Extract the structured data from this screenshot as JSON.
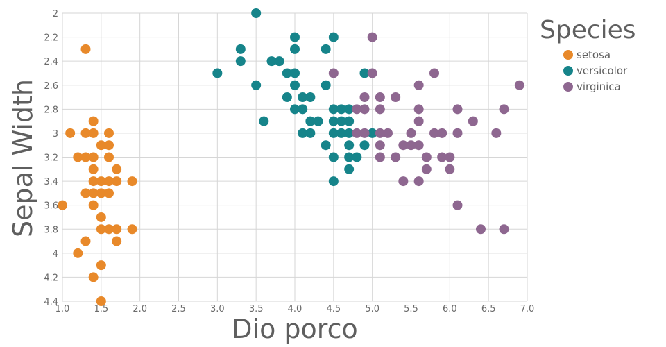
{
  "chart_data": {
    "type": "scatter",
    "xlabel": "Dio porco",
    "ylabel": "Sepal Width",
    "xlim": [
      1.0,
      7.0
    ],
    "ylim": [
      2.0,
      4.4
    ],
    "y_reversed": true,
    "x_ticks": [
      "1.0",
      "1.5",
      "2.0",
      "2.5",
      "3.0",
      "3.5",
      "4.0",
      "4.5",
      "5.0",
      "5.5",
      "6.0",
      "6.5",
      "7.0"
    ],
    "y_ticks": [
      "2",
      "2.2",
      "2.4",
      "2.6",
      "2.8",
      "3",
      "3.2",
      "3.4",
      "3.6",
      "3.8",
      "4",
      "4.2",
      "4.4"
    ],
    "grid": true,
    "legend": {
      "title": "Species",
      "placement": "right"
    },
    "series": [
      {
        "name": "setosa",
        "color": "#E8892A",
        "points": [
          [
            1.3,
            2.3
          ],
          [
            1.1,
            3.0
          ],
          [
            1.3,
            3.0
          ],
          [
            1.4,
            3.0
          ],
          [
            1.6,
            3.0
          ],
          [
            1.4,
            2.9
          ],
          [
            1.2,
            3.2
          ],
          [
            1.3,
            3.2
          ],
          [
            1.4,
            3.2
          ],
          [
            1.6,
            3.2
          ],
          [
            1.5,
            3.1
          ],
          [
            1.6,
            3.1
          ],
          [
            1.4,
            3.3
          ],
          [
            1.7,
            3.3
          ],
          [
            1.4,
            3.4
          ],
          [
            1.5,
            3.4
          ],
          [
            1.6,
            3.4
          ],
          [
            1.7,
            3.4
          ],
          [
            1.9,
            3.4
          ],
          [
            1.3,
            3.5
          ],
          [
            1.4,
            3.5
          ],
          [
            1.5,
            3.5
          ],
          [
            1.6,
            3.5
          ],
          [
            1.0,
            3.6
          ],
          [
            1.4,
            3.6
          ],
          [
            1.5,
            3.7
          ],
          [
            1.5,
            3.8
          ],
          [
            1.6,
            3.8
          ],
          [
            1.7,
            3.8
          ],
          [
            1.9,
            3.8
          ],
          [
            1.3,
            3.9
          ],
          [
            1.7,
            3.9
          ],
          [
            1.2,
            4.0
          ],
          [
            1.5,
            4.1
          ],
          [
            1.4,
            4.2
          ],
          [
            1.5,
            4.4
          ]
        ]
      },
      {
        "name": "versicolor",
        "color": "#16848A",
        "points": [
          [
            3.5,
            2.0
          ],
          [
            4.0,
            2.2
          ],
          [
            4.5,
            2.2
          ],
          [
            3.3,
            2.3
          ],
          [
            4.0,
            2.3
          ],
          [
            4.4,
            2.3
          ],
          [
            3.3,
            2.4
          ],
          [
            3.7,
            2.4
          ],
          [
            3.8,
            2.4
          ],
          [
            3.0,
            2.5
          ],
          [
            3.9,
            2.5
          ],
          [
            4.0,
            2.5
          ],
          [
            4.9,
            2.5
          ],
          [
            3.5,
            2.6
          ],
          [
            4.0,
            2.6
          ],
          [
            4.4,
            2.6
          ],
          [
            3.9,
            2.7
          ],
          [
            4.1,
            2.7
          ],
          [
            4.2,
            2.7
          ],
          [
            4.0,
            2.8
          ],
          [
            4.1,
            2.8
          ],
          [
            4.5,
            2.8
          ],
          [
            4.6,
            2.8
          ],
          [
            4.7,
            2.8
          ],
          [
            3.6,
            2.9
          ],
          [
            4.2,
            2.9
          ],
          [
            4.3,
            2.9
          ],
          [
            4.5,
            2.9
          ],
          [
            4.6,
            2.9
          ],
          [
            4.7,
            2.9
          ],
          [
            4.1,
            3.0
          ],
          [
            4.2,
            3.0
          ],
          [
            4.5,
            3.0
          ],
          [
            4.6,
            3.0
          ],
          [
            4.7,
            3.0
          ],
          [
            5.0,
            3.0
          ],
          [
            4.4,
            3.1
          ],
          [
            4.7,
            3.1
          ],
          [
            4.9,
            3.1
          ],
          [
            4.5,
            3.2
          ],
          [
            4.7,
            3.2
          ],
          [
            4.8,
            3.2
          ],
          [
            4.7,
            3.3
          ],
          [
            4.5,
            3.4
          ]
        ]
      },
      {
        "name": "virginica",
        "color": "#8E6790",
        "points": [
          [
            5.0,
            2.2
          ],
          [
            4.5,
            2.5
          ],
          [
            5.0,
            2.5
          ],
          [
            5.8,
            2.5
          ],
          [
            5.6,
            2.6
          ],
          [
            6.9,
            2.6
          ],
          [
            4.9,
            2.7
          ],
          [
            5.1,
            2.7
          ],
          [
            5.3,
            2.7
          ],
          [
            4.8,
            2.8
          ],
          [
            4.9,
            2.8
          ],
          [
            5.1,
            2.8
          ],
          [
            5.6,
            2.8
          ],
          [
            6.1,
            2.8
          ],
          [
            6.7,
            2.8
          ],
          [
            5.6,
            2.9
          ],
          [
            6.3,
            2.9
          ],
          [
            4.8,
            3.0
          ],
          [
            4.9,
            3.0
          ],
          [
            5.1,
            3.0
          ],
          [
            5.2,
            3.0
          ],
          [
            5.5,
            3.0
          ],
          [
            5.8,
            3.0
          ],
          [
            5.9,
            3.0
          ],
          [
            6.1,
            3.0
          ],
          [
            6.6,
            3.0
          ],
          [
            5.1,
            3.1
          ],
          [
            5.4,
            3.1
          ],
          [
            5.5,
            3.1
          ],
          [
            5.6,
            3.1
          ],
          [
            5.1,
            3.2
          ],
          [
            5.3,
            3.2
          ],
          [
            5.7,
            3.2
          ],
          [
            5.9,
            3.2
          ],
          [
            6.0,
            3.2
          ],
          [
            5.7,
            3.3
          ],
          [
            6.0,
            3.3
          ],
          [
            5.4,
            3.4
          ],
          [
            5.6,
            3.4
          ],
          [
            6.1,
            3.6
          ],
          [
            6.4,
            3.8
          ],
          [
            6.7,
            3.8
          ]
        ]
      }
    ]
  }
}
